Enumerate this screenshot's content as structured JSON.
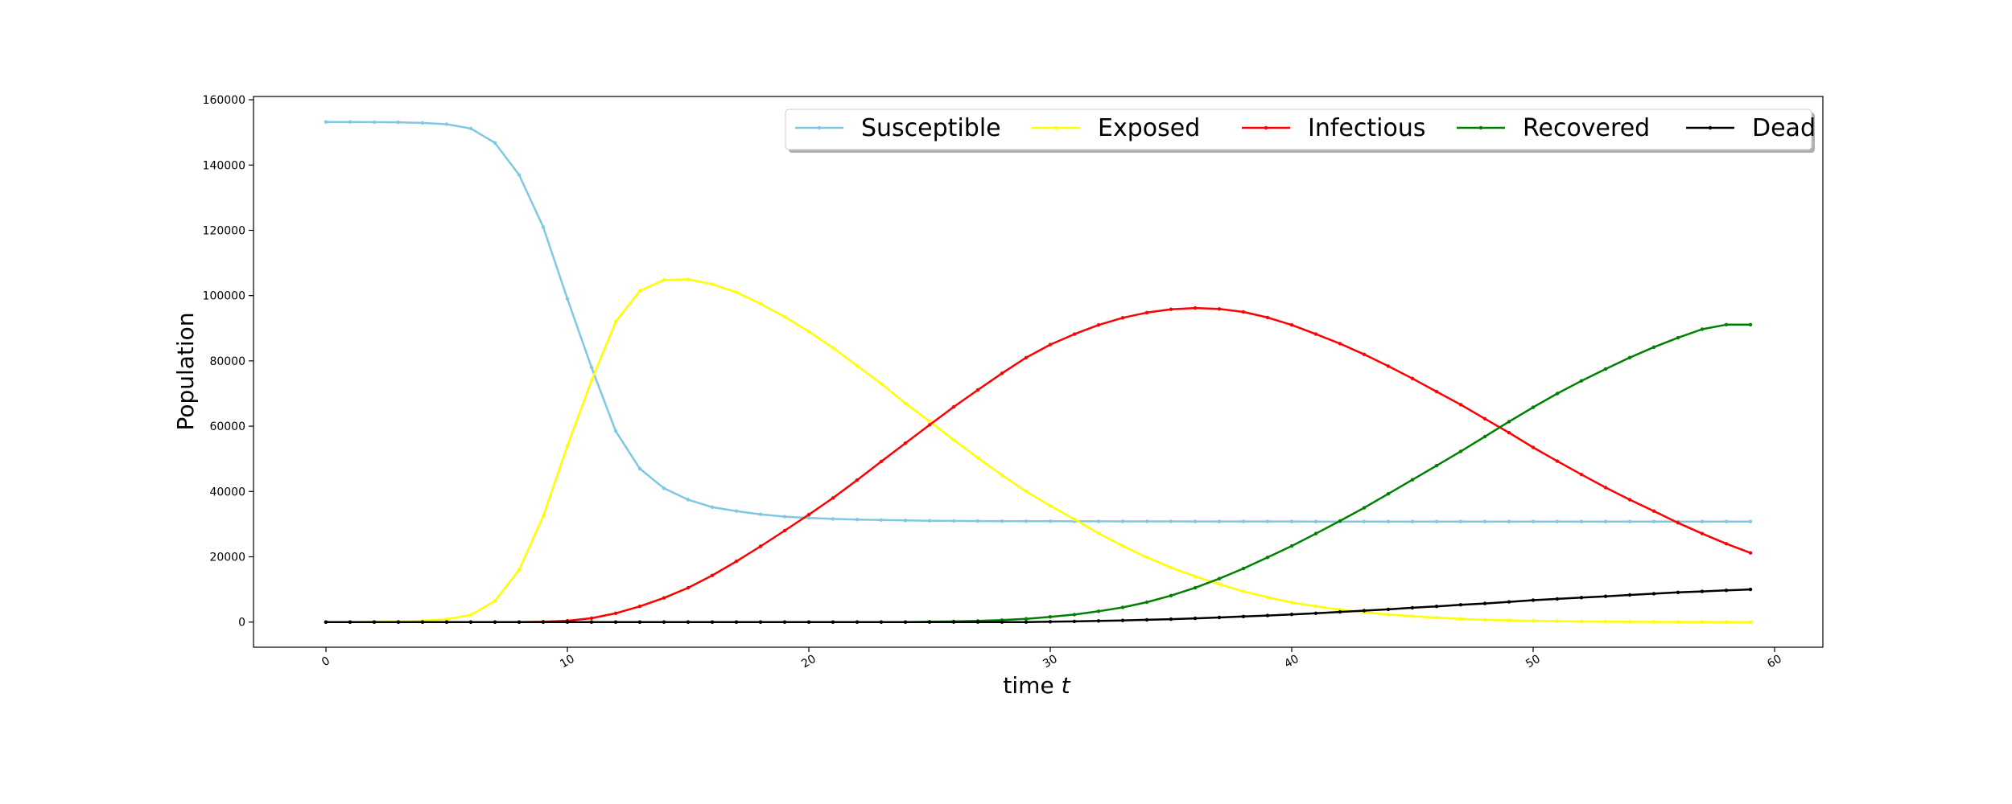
{
  "chart_data": {
    "type": "line",
    "title": "",
    "xlabel": "time",
    "xlabel_var": "t",
    "ylabel": "Population",
    "xlim": [
      -3,
      62
    ],
    "ylim": [
      -7700,
      161000
    ],
    "xticks": [
      0,
      10,
      20,
      30,
      40,
      50,
      60
    ],
    "yticks": [
      0,
      20000,
      40000,
      60000,
      80000,
      100000,
      120000,
      140000,
      160000
    ],
    "grid": false,
    "legend_position": "top-right",
    "x": [
      0,
      1,
      2,
      3,
      4,
      5,
      6,
      7,
      8,
      9,
      10,
      11,
      12,
      13,
      14,
      15,
      16,
      17,
      18,
      19,
      20,
      21,
      22,
      23,
      24,
      25,
      26,
      27,
      28,
      29,
      30,
      31,
      32,
      33,
      34,
      35,
      36,
      37,
      38,
      39,
      40,
      41,
      42,
      43,
      44,
      45,
      46,
      47,
      48,
      49,
      50,
      51,
      52,
      53,
      54,
      55,
      56,
      57,
      58,
      59
    ],
    "series": [
      {
        "name": "Susceptible",
        "color": "#7ec8e3",
        "values": [
          153200,
          153200,
          153150,
          153100,
          152900,
          152500,
          151200,
          146800,
          137000,
          121000,
          99000,
          78000,
          58500,
          47000,
          41000,
          37500,
          35200,
          34000,
          33000,
          32300,
          31900,
          31600,
          31400,
          31250,
          31150,
          31050,
          31000,
          30950,
          30920,
          30900,
          30880,
          30870,
          30860,
          30850,
          30840,
          30835,
          30830,
          30825,
          30820,
          30815,
          30810,
          30805,
          30800,
          30800,
          30800,
          30800,
          30800,
          30800,
          30800,
          30800,
          30800,
          30800,
          30800,
          30800,
          30800,
          30800,
          30800,
          30800,
          30800,
          30800
        ]
      },
      {
        "name": "Exposed",
        "color": "#ffff00",
        "values": [
          0,
          20,
          60,
          150,
          400,
          900,
          2200,
          6500,
          16000,
          32500,
          54000,
          74000,
          92000,
          101500,
          104800,
          105000,
          103500,
          101000,
          97500,
          93500,
          89000,
          84000,
          78500,
          73000,
          67000,
          61500,
          55800,
          50300,
          45000,
          40000,
          35600,
          31500,
          27200,
          23300,
          19800,
          16700,
          14000,
          11600,
          9400,
          7600,
          6000,
          4800,
          3800,
          3000,
          2300,
          1800,
          1350,
          1000,
          700,
          520,
          380,
          270,
          190,
          130,
          90,
          60,
          40,
          25,
          15,
          10
        ]
      },
      {
        "name": "Infectious",
        "color": "#ff0000",
        "values": [
          0,
          0,
          0,
          0,
          0,
          0,
          0,
          0,
          0,
          100,
          400,
          1200,
          2700,
          4800,
          7400,
          10500,
          14300,
          18600,
          23200,
          28000,
          32900,
          38000,
          43500,
          49200,
          54800,
          60400,
          65900,
          71100,
          76200,
          81000,
          85000,
          88200,
          91000,
          93200,
          94800,
          95800,
          96200,
          95900,
          95000,
          93300,
          91000,
          88200,
          85300,
          82000,
          78400,
          74600,
          70600,
          66600,
          62300,
          58000,
          53500,
          49300,
          45200,
          41200,
          37500,
          34000,
          30400,
          27100,
          24000,
          21200
        ]
      },
      {
        "name": "Recovered",
        "color": "#008000",
        "values": [
          0,
          0,
          0,
          0,
          0,
          0,
          0,
          0,
          0,
          0,
          0,
          0,
          0,
          0,
          0,
          0,
          0,
          0,
          0,
          0,
          0,
          0,
          0,
          0,
          0,
          100,
          200,
          350,
          600,
          1000,
          1600,
          2300,
          3300,
          4500,
          6100,
          8100,
          10500,
          13300,
          16400,
          19800,
          23300,
          27100,
          31000,
          35000,
          39300,
          43600,
          47900,
          52300,
          56800,
          61400,
          65800,
          70000,
          73900,
          77500,
          81000,
          84200,
          87100,
          89700,
          91100,
          91100
        ]
      },
      {
        "name": "Dead",
        "color": "#000000",
        "values": [
          0,
          0,
          0,
          0,
          0,
          0,
          0,
          0,
          0,
          0,
          0,
          0,
          0,
          0,
          0,
          0,
          0,
          0,
          0,
          0,
          0,
          0,
          0,
          0,
          0,
          0,
          0,
          0,
          0,
          0,
          100,
          200,
          350,
          500,
          700,
          900,
          1150,
          1400,
          1700,
          2000,
          2350,
          2700,
          3100,
          3500,
          3900,
          4400,
          4800,
          5300,
          5700,
          6200,
          6700,
          7100,
          7500,
          7900,
          8300,
          8700,
          9100,
          9400,
          9700,
          10000
        ]
      }
    ]
  }
}
